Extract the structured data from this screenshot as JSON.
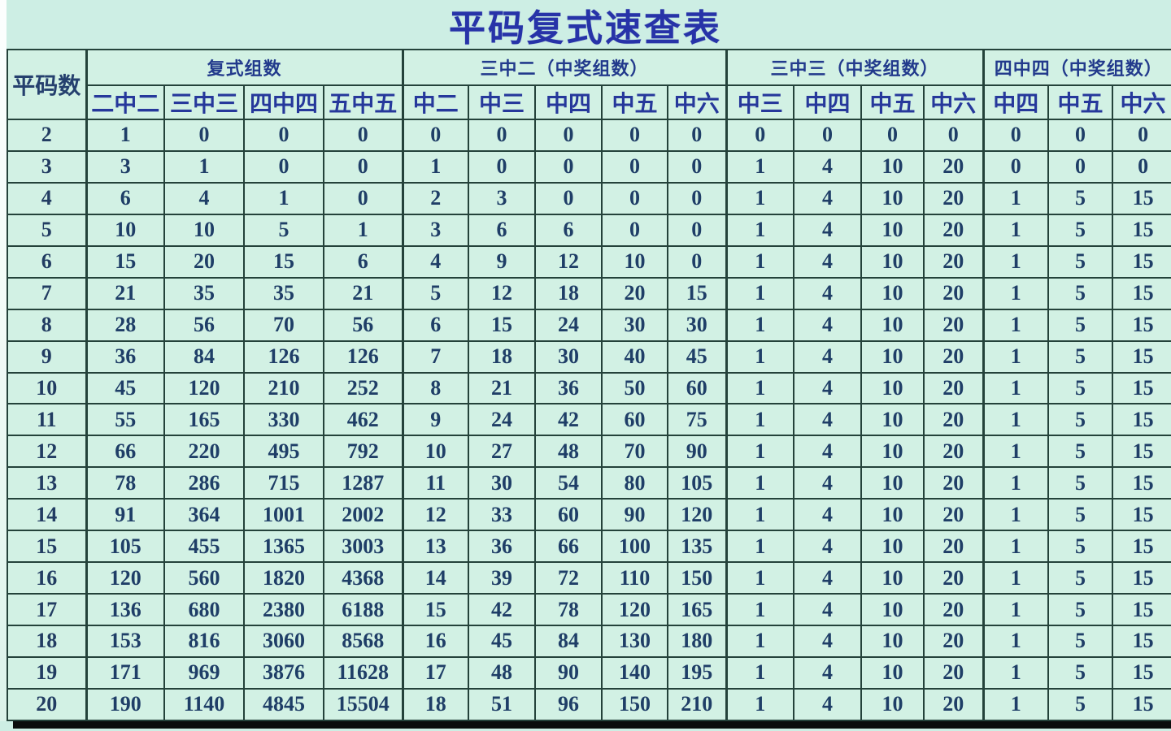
{
  "title": "平码复式速查表",
  "colors": {
    "background_top": "#aee3ec",
    "background_bottom": "#d9f5e8",
    "cell_background": "#d2f1e4",
    "grid_line": "#24423a",
    "title_text": "#2733a8",
    "header_text": "#26389b",
    "number_text": "#1f3e67",
    "bottom_bar": "#0b0d0c"
  },
  "chart_data": {
    "type": "table",
    "title": "平码复式速查表",
    "corner_header": "平码数",
    "groups": [
      {
        "label": "复式组数",
        "columns": [
          "二中二",
          "三中三",
          "四中四",
          "五中五"
        ]
      },
      {
        "label": "三中二（中奖组数）",
        "columns": [
          "中二",
          "中三",
          "中四",
          "中五",
          "中六"
        ]
      },
      {
        "label": "三中三（中奖组数）",
        "columns": [
          "中三",
          "中四",
          "中五",
          "中六"
        ]
      },
      {
        "label": "四中四（中奖组数）",
        "columns": [
          "中四",
          "中五",
          "中六"
        ]
      }
    ],
    "rows": [
      [
        2,
        1,
        0,
        0,
        0,
        0,
        0,
        0,
        0,
        0,
        0,
        0,
        0,
        0,
        0,
        0,
        0
      ],
      [
        3,
        3,
        1,
        0,
        0,
        1,
        0,
        0,
        0,
        0,
        1,
        4,
        10,
        20,
        0,
        0,
        0
      ],
      [
        4,
        6,
        4,
        1,
        0,
        2,
        3,
        0,
        0,
        0,
        1,
        4,
        10,
        20,
        1,
        5,
        15
      ],
      [
        5,
        10,
        10,
        5,
        1,
        3,
        6,
        6,
        0,
        0,
        1,
        4,
        10,
        20,
        1,
        5,
        15
      ],
      [
        6,
        15,
        20,
        15,
        6,
        4,
        9,
        12,
        10,
        0,
        1,
        4,
        10,
        20,
        1,
        5,
        15
      ],
      [
        7,
        21,
        35,
        35,
        21,
        5,
        12,
        18,
        20,
        15,
        1,
        4,
        10,
        20,
        1,
        5,
        15
      ],
      [
        8,
        28,
        56,
        70,
        56,
        6,
        15,
        24,
        30,
        30,
        1,
        4,
        10,
        20,
        1,
        5,
        15
      ],
      [
        9,
        36,
        84,
        126,
        126,
        7,
        18,
        30,
        40,
        45,
        1,
        4,
        10,
        20,
        1,
        5,
        15
      ],
      [
        10,
        45,
        120,
        210,
        252,
        8,
        21,
        36,
        50,
        60,
        1,
        4,
        10,
        20,
        1,
        5,
        15
      ],
      [
        11,
        55,
        165,
        330,
        462,
        9,
        24,
        42,
        60,
        75,
        1,
        4,
        10,
        20,
        1,
        5,
        15
      ],
      [
        12,
        66,
        220,
        495,
        792,
        10,
        27,
        48,
        70,
        90,
        1,
        4,
        10,
        20,
        1,
        5,
        15
      ],
      [
        13,
        78,
        286,
        715,
        1287,
        11,
        30,
        54,
        80,
        105,
        1,
        4,
        10,
        20,
        1,
        5,
        15
      ],
      [
        14,
        91,
        364,
        1001,
        2002,
        12,
        33,
        60,
        90,
        120,
        1,
        4,
        10,
        20,
        1,
        5,
        15
      ],
      [
        15,
        105,
        455,
        1365,
        3003,
        13,
        36,
        66,
        100,
        135,
        1,
        4,
        10,
        20,
        1,
        5,
        15
      ],
      [
        16,
        120,
        560,
        1820,
        4368,
        14,
        39,
        72,
        110,
        150,
        1,
        4,
        10,
        20,
        1,
        5,
        15
      ],
      [
        17,
        136,
        680,
        2380,
        6188,
        15,
        42,
        78,
        120,
        165,
        1,
        4,
        10,
        20,
        1,
        5,
        15
      ],
      [
        18,
        153,
        816,
        3060,
        8568,
        16,
        45,
        84,
        130,
        180,
        1,
        4,
        10,
        20,
        1,
        5,
        15
      ],
      [
        19,
        171,
        969,
        3876,
        11628,
        17,
        48,
        90,
        140,
        195,
        1,
        4,
        10,
        20,
        1,
        5,
        15
      ],
      [
        20,
        190,
        1140,
        4845,
        15504,
        18,
        51,
        96,
        150,
        210,
        1,
        4,
        10,
        20,
        1,
        5,
        15
      ]
    ]
  }
}
